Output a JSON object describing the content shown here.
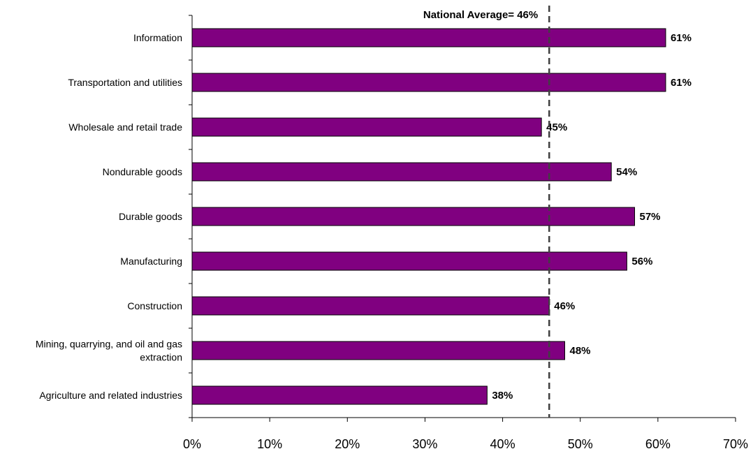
{
  "chart_data": {
    "type": "bar",
    "orientation": "horizontal",
    "categories": [
      "Information",
      "Transportation and utilities",
      "Wholesale and retail trade",
      "Nondurable goods",
      "Durable goods",
      "Manufacturing",
      "Construction",
      "Mining, quarrying, and oil and gas extraction",
      "Agriculture and related industries"
    ],
    "category_lines": [
      [
        "Information"
      ],
      [
        "Transportation and utilities"
      ],
      [
        "Wholesale and retail trade"
      ],
      [
        "Nondurable goods"
      ],
      [
        "Durable goods"
      ],
      [
        "Manufacturing"
      ],
      [
        "Construction"
      ],
      [
        "Mining, quarrying, and oil and gas",
        "extraction"
      ],
      [
        "Agriculture and related industries"
      ]
    ],
    "values": [
      61,
      61,
      45,
      54,
      57,
      56,
      46,
      48,
      38
    ],
    "data_labels": [
      "61%",
      "61%",
      "45%",
      "54%",
      "57%",
      "56%",
      "46%",
      "48%",
      "38%"
    ],
    "xlim": [
      0,
      70
    ],
    "x_ticks": [
      0,
      10,
      20,
      30,
      40,
      50,
      60,
      70
    ],
    "x_tick_labels": [
      "0%",
      "10%",
      "20%",
      "30%",
      "40%",
      "50%",
      "60%",
      "70%"
    ],
    "reference_line": {
      "value": 46,
      "label": "National Average= 46%",
      "style": "dashed"
    },
    "title": "",
    "xlabel": "",
    "ylabel": "",
    "grid": false,
    "legend": "none",
    "bar_color": "#800080",
    "bar_edge_color": "#000000"
  }
}
